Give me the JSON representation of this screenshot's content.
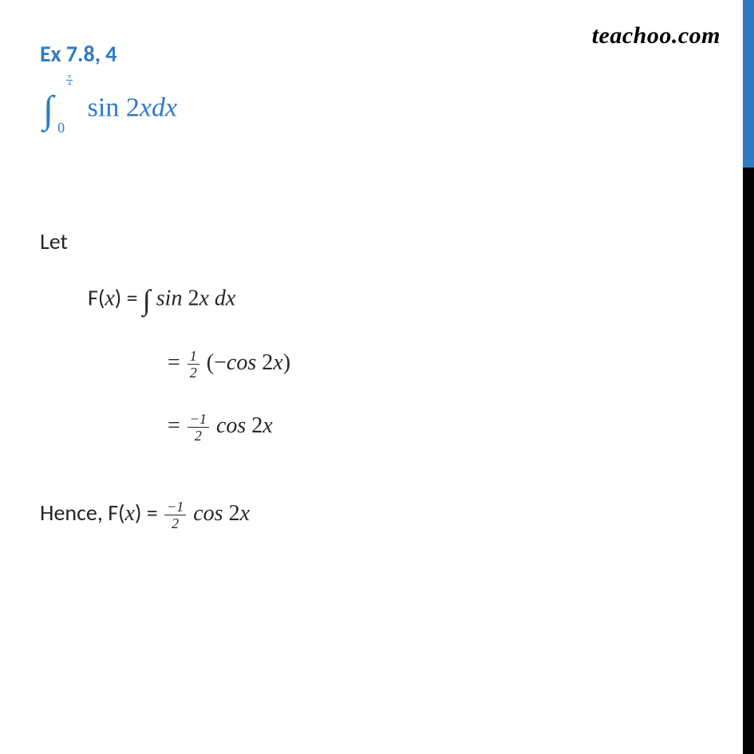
{
  "watermark": "teachoo.com",
  "colors": {
    "accent": "#2e7bc4",
    "text": "#262626",
    "border_top": "#2e7bc4",
    "border_bottom": "#000000",
    "background": "#ffffff"
  },
  "typography": {
    "title_fontsize": 28,
    "body_fontsize": 28,
    "math_font": "Cambria Math",
    "body_font": "Segoe UI",
    "watermark_font": "Brush Script MT"
  },
  "exercise": {
    "title": "Ex 7.8, 4",
    "problem": {
      "integral_lower": "0",
      "integral_upper_num": "π",
      "integral_upper_den": "4",
      "integrand_prefix": "sin 2",
      "integrand_var": "x",
      "integrand_diff": "dx"
    }
  },
  "solution": {
    "let_label": "Let",
    "step1": {
      "lhs_func": "F(",
      "lhs_var": "x",
      "lhs_close": ") = ",
      "int_sign": "∫",
      "integrand_a": "sin",
      "integrand_b": " 2",
      "integrand_var": "x ",
      "integrand_diff": "dx"
    },
    "step2": {
      "eq": "= ",
      "frac_num": "1",
      "frac_den": "2",
      "open": " (−",
      "fn": "cos",
      "arg": " 2",
      "var": "x",
      "close": ")"
    },
    "step3": {
      "eq": "= ",
      "frac_num": "−1",
      "frac_den": "2",
      "fn": " cos",
      "arg": " 2",
      "var": "x"
    },
    "hence": {
      "label": "Hence, ",
      "lhs_func": "F(",
      "lhs_var": "x",
      "lhs_close": ") = ",
      "frac_num": "−1",
      "frac_den": "2",
      "fn": " cos",
      "arg": " 2",
      "var": "x"
    }
  }
}
